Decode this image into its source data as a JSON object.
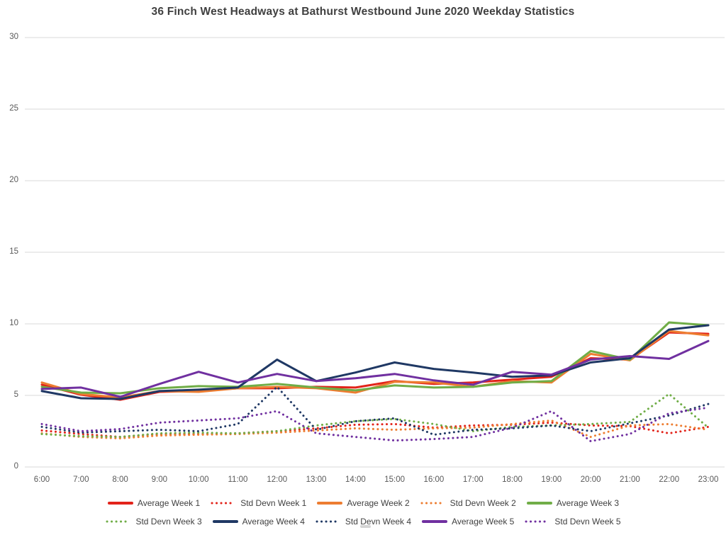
{
  "title": "36 Finch West Headways at Bathurst Westbound June 2020 Weekday Statistics",
  "colors": {
    "grid": "#D9D9D9",
    "axis_label": "#595959",
    "title": "#404040",
    "legend_text": "#404040",
    "week1": "#E2231A",
    "week2": "#ED7D31",
    "week3": "#70AD47",
    "week4": "#1F3864",
    "week5": "#7030A0"
  },
  "chart_data": {
    "type": "line",
    "title": "36 Finch West Headways at Bathurst Westbound June 2020 Weekday Statistics",
    "xlabel": "",
    "ylabel": "",
    "x": [
      "6:00",
      "7:00",
      "8:00",
      "9:00",
      "10:00",
      "11:00",
      "12:00",
      "13:00",
      "14:00",
      "15:00",
      "16:00",
      "17:00",
      "18:00",
      "19:00",
      "20:00",
      "21:00",
      "22:00",
      "23:00"
    ],
    "yticks": [
      0,
      5,
      10,
      15,
      20,
      25,
      30
    ],
    "ylim": [
      0,
      30
    ],
    "grid": "horizontal",
    "legend_position": "bottom",
    "series": [
      {
        "name": "Average Week 1",
        "color": "#E2231A",
        "style": "solid",
        "values": [
          5.75,
          5.05,
          4.7,
          5.25,
          5.3,
          5.5,
          5.5,
          5.6,
          5.55,
          6.0,
          5.8,
          5.9,
          6.1,
          6.3,
          7.6,
          7.5,
          9.4,
          9.3
        ]
      },
      {
        "name": "Std Devn Week 1",
        "color": "#E2231A",
        "style": "dotted",
        "values": [
          2.55,
          2.3,
          2.1,
          2.3,
          2.3,
          2.35,
          2.5,
          2.7,
          2.95,
          3.0,
          2.75,
          2.9,
          2.95,
          3.1,
          2.9,
          2.85,
          2.35,
          2.8
        ]
      },
      {
        "name": "Average Week 2",
        "color": "#ED7D31",
        "style": "solid",
        "values": [
          5.9,
          5.1,
          4.85,
          5.3,
          5.25,
          5.5,
          5.6,
          5.5,
          5.2,
          5.95,
          5.9,
          5.6,
          6.0,
          5.9,
          7.9,
          7.45,
          9.5,
          9.2
        ]
      },
      {
        "name": "Std Devn Week 2",
        "color": "#ED7D31",
        "style": "dotted",
        "values": [
          2.35,
          2.1,
          2.0,
          2.2,
          2.25,
          2.3,
          2.4,
          2.55,
          2.7,
          2.6,
          2.7,
          2.75,
          3.0,
          3.25,
          2.1,
          2.9,
          3.0,
          2.6
        ]
      },
      {
        "name": "Average Week 3",
        "color": "#70AD47",
        "style": "solid",
        "values": [
          5.6,
          5.2,
          5.15,
          5.5,
          5.65,
          5.6,
          5.8,
          5.55,
          5.35,
          5.7,
          5.55,
          5.6,
          5.9,
          6.0,
          8.1,
          7.5,
          10.1,
          9.9
        ]
      },
      {
        "name": "Std Devn Week 3",
        "color": "#70AD47",
        "style": "dotted",
        "values": [
          2.3,
          2.15,
          2.1,
          2.35,
          2.4,
          2.35,
          2.5,
          2.9,
          3.2,
          3.35,
          3.0,
          2.5,
          2.8,
          2.9,
          3.0,
          3.15,
          5.1,
          2.75
        ]
      },
      {
        "name": "Average Week 4",
        "color": "#1F3864",
        "style": "solid",
        "values": [
          5.3,
          4.8,
          4.75,
          5.3,
          5.4,
          5.55,
          7.5,
          6.0,
          6.6,
          7.3,
          6.85,
          6.6,
          6.3,
          6.4,
          7.3,
          7.6,
          9.6,
          9.9
        ]
      },
      {
        "name": "Std Devn Week 4",
        "color": "#1F3864",
        "style": "dotted",
        "values": [
          2.8,
          2.4,
          2.5,
          2.6,
          2.5,
          3.0,
          5.6,
          2.6,
          3.2,
          3.4,
          2.25,
          2.6,
          2.7,
          2.9,
          2.5,
          3.05,
          3.6,
          4.4
        ]
      },
      {
        "name": "Average Week 5",
        "color": "#7030A0",
        "style": "solid",
        "values": [
          5.45,
          5.55,
          4.9,
          5.8,
          6.65,
          5.9,
          6.5,
          6.0,
          6.2,
          6.5,
          6.05,
          5.75,
          6.65,
          6.45,
          7.5,
          7.75,
          7.55,
          8.8
        ]
      },
      {
        "name": "Std Devn Week 5",
        "color": "#7030A0",
        "style": "dotted",
        "values": [
          3.0,
          2.5,
          2.65,
          3.1,
          3.25,
          3.4,
          3.9,
          2.35,
          2.1,
          1.85,
          1.95,
          2.1,
          2.75,
          3.9,
          1.8,
          2.3,
          3.75,
          4.15
        ]
      }
    ]
  },
  "legend": {
    "row1": [
      "Average Week 1",
      "Std Devn Week 1",
      "Average Week 2",
      "Std Devn Week 2",
      "Average Week 3"
    ],
    "row2": [
      "Std Devn Week 3",
      "Average Week 4",
      "Std Devn Week 4",
      "Average Week 5",
      "Std Devn Week 5"
    ]
  }
}
